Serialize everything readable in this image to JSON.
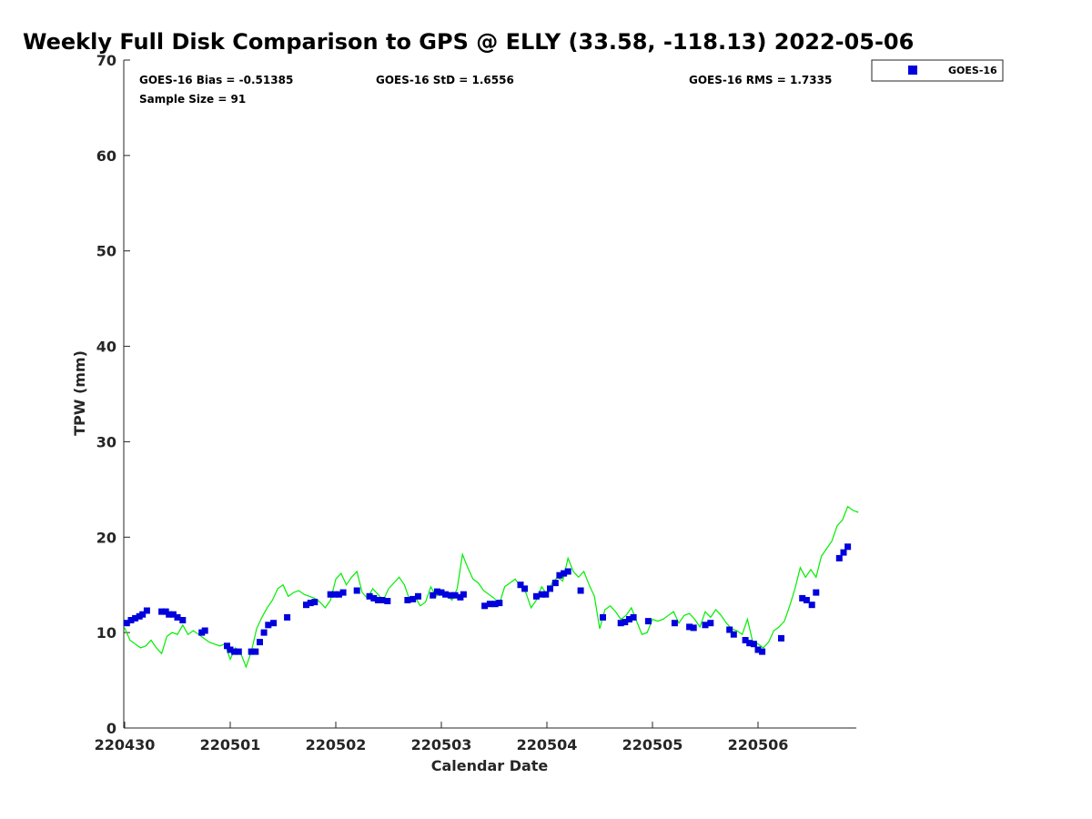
{
  "chart_data": {
    "type": "scatter",
    "title": "Weekly Full Disk Comparison to GPS @ ELLY (33.58, -118.13) 2022-05-06",
    "xlabel": "Calendar Date",
    "ylabel": "TPW (mm)",
    "xlim": [
      0,
      7
    ],
    "ylim": [
      0,
      70
    ],
    "x_ticks": [
      {
        "value": 0,
        "label": "220430"
      },
      {
        "value": 1,
        "label": "220501"
      },
      {
        "value": 2,
        "label": "220502"
      },
      {
        "value": 3,
        "label": "220503"
      },
      {
        "value": 4,
        "label": "220504"
      },
      {
        "value": 5,
        "label": "220505"
      },
      {
        "value": 6,
        "label": "220506"
      }
    ],
    "y_ticks": [
      0,
      10,
      20,
      30,
      40,
      50,
      60,
      70
    ],
    "grid": false,
    "legend": {
      "position": "outside-top-right",
      "entries": [
        "GOES-16"
      ]
    },
    "stats": {
      "bias": "GOES-16 Bias = -0.51385",
      "std": "GOES-16 StD = 1.6556",
      "rms": "GOES-16 RMS = 1.7335",
      "sample_size": "Sample Size = 91"
    },
    "series": [
      {
        "name": "GOES-16",
        "kind": "markers",
        "color": "#0000dd",
        "x": [
          0.02,
          0.06,
          0.1,
          0.14,
          0.17,
          0.21,
          0.35,
          0.39,
          0.42,
          0.46,
          0.5,
          0.55,
          0.73,
          0.76,
          0.97,
          1.0,
          1.04,
          1.08,
          1.2,
          1.24,
          1.28,
          1.32,
          1.36,
          1.41,
          1.54,
          1.72,
          1.76,
          1.8,
          1.95,
          1.99,
          2.03,
          2.07,
          2.2,
          2.32,
          2.36,
          2.4,
          2.44,
          2.49,
          2.68,
          2.73,
          2.78,
          2.92,
          2.96,
          3.0,
          3.04,
          3.09,
          3.13,
          3.18,
          3.21,
          3.41,
          3.46,
          3.51,
          3.55,
          3.75,
          3.79,
          3.9,
          3.95,
          3.99,
          4.03,
          4.08,
          4.12,
          4.16,
          4.2,
          4.32,
          4.53,
          4.7,
          4.74,
          4.78,
          4.82,
          4.96,
          5.21,
          5.35,
          5.39,
          5.5,
          5.55,
          5.73,
          5.77,
          5.88,
          5.92,
          5.96,
          6.0,
          6.04,
          6.22,
          6.42,
          6.46,
          6.51,
          6.55,
          6.77,
          6.81,
          6.85
        ],
        "y": [
          11.0,
          11.3,
          11.5,
          11.7,
          11.9,
          12.3,
          12.2,
          12.2,
          11.9,
          11.9,
          11.6,
          11.3,
          10.0,
          10.2,
          8.6,
          8.2,
          8.0,
          8.0,
          8.0,
          8.0,
          9.0,
          10.0,
          10.8,
          11.0,
          11.6,
          12.9,
          13.1,
          13.2,
          14.0,
          14.0,
          14.0,
          14.2,
          14.4,
          13.8,
          13.6,
          13.4,
          13.4,
          13.3,
          13.4,
          13.5,
          13.8,
          13.9,
          14.3,
          14.2,
          14.0,
          13.9,
          13.9,
          13.7,
          14.0,
          12.8,
          13.0,
          13.0,
          13.1,
          15.0,
          14.6,
          13.8,
          14.0,
          14.0,
          14.6,
          15.2,
          16.0,
          16.2,
          16.4,
          14.4,
          11.6,
          11.0,
          11.1,
          11.4,
          11.6,
          11.2,
          11.0,
          10.6,
          10.5,
          10.8,
          11.0,
          10.3,
          9.8,
          9.2,
          8.9,
          8.8,
          8.2,
          8.0,
          9.4,
          13.6,
          13.4,
          12.9,
          14.2,
          17.8,
          18.4,
          19.0
        ]
      },
      {
        "name": "",
        "kind": "line",
        "color": "#00ee00",
        "x": [
          0.0,
          0.05,
          0.1,
          0.15,
          0.2,
          0.25,
          0.3,
          0.35,
          0.4,
          0.45,
          0.5,
          0.55,
          0.6,
          0.65,
          0.7,
          0.75,
          0.8,
          0.85,
          0.9,
          0.95,
          1.0,
          1.05,
          1.1,
          1.15,
          1.2,
          1.25,
          1.3,
          1.35,
          1.4,
          1.45,
          1.5,
          1.55,
          1.6,
          1.65,
          1.7,
          1.75,
          1.8,
          1.85,
          1.9,
          1.95,
          2.0,
          2.05,
          2.1,
          2.15,
          2.2,
          2.25,
          2.3,
          2.35,
          2.4,
          2.45,
          2.5,
          2.55,
          2.6,
          2.65,
          2.7,
          2.75,
          2.8,
          2.85,
          2.9,
          2.95,
          3.0,
          3.05,
          3.1,
          3.15,
          3.2,
          3.25,
          3.3,
          3.35,
          3.4,
          3.45,
          3.5,
          3.55,
          3.6,
          3.65,
          3.7,
          3.75,
          3.8,
          3.85,
          3.9,
          3.95,
          4.0,
          4.05,
          4.1,
          4.15,
          4.2,
          4.25,
          4.3,
          4.35,
          4.4,
          4.45,
          4.5,
          4.55,
          4.6,
          4.65,
          4.7,
          4.75,
          4.8,
          4.85,
          4.9,
          4.95,
          5.0,
          5.05,
          5.1,
          5.15,
          5.2,
          5.25,
          5.3,
          5.35,
          5.4,
          5.45,
          5.5,
          5.55,
          5.6,
          5.65,
          5.7,
          5.75,
          5.8,
          5.85,
          5.9,
          5.95,
          6.0,
          6.05,
          6.1,
          6.15,
          6.2,
          6.25,
          6.3,
          6.35,
          6.4,
          6.45,
          6.5,
          6.55,
          6.6,
          6.65,
          6.7,
          6.75,
          6.8,
          6.85,
          6.9,
          6.95
        ],
        "y": [
          10.5,
          9.2,
          8.8,
          8.4,
          8.6,
          9.2,
          8.4,
          7.8,
          9.6,
          10.0,
          9.8,
          10.8,
          9.8,
          10.2,
          9.8,
          9.4,
          9.0,
          8.8,
          8.6,
          8.8,
          7.2,
          8.4,
          7.8,
          6.4,
          8.0,
          10.4,
          11.6,
          12.6,
          13.4,
          14.6,
          15.0,
          13.8,
          14.2,
          14.4,
          14.0,
          13.8,
          13.6,
          13.2,
          12.6,
          13.4,
          15.6,
          16.2,
          15.0,
          15.8,
          16.4,
          14.2,
          13.6,
          14.6,
          14.0,
          13.4,
          14.6,
          15.2,
          15.8,
          15.0,
          13.4,
          13.8,
          12.8,
          13.2,
          14.8,
          13.8,
          14.2,
          14.0,
          13.4,
          14.6,
          18.2,
          16.8,
          15.6,
          15.2,
          14.4,
          14.0,
          13.6,
          13.0,
          14.8,
          15.2,
          15.6,
          14.8,
          14.2,
          12.6,
          13.4,
          14.8,
          14.0,
          15.2,
          15.8,
          15.4,
          17.8,
          16.4,
          15.8,
          16.4,
          15.0,
          13.8,
          10.4,
          12.4,
          12.8,
          12.2,
          11.4,
          11.8,
          12.6,
          11.2,
          9.8,
          10.0,
          11.4,
          11.2,
          11.4,
          11.8,
          12.2,
          11.0,
          11.8,
          12.0,
          11.4,
          10.6,
          12.2,
          11.6,
          12.4,
          11.8,
          11.0,
          10.4,
          10.2,
          9.8,
          11.4,
          9.0,
          8.8,
          8.4,
          9.0,
          10.2,
          10.6,
          11.2,
          12.8,
          14.6,
          16.8,
          15.8,
          16.6,
          15.8,
          18.0,
          18.8,
          19.6,
          21.2,
          21.8,
          23.2,
          22.8,
          22.6
        ]
      }
    ]
  }
}
